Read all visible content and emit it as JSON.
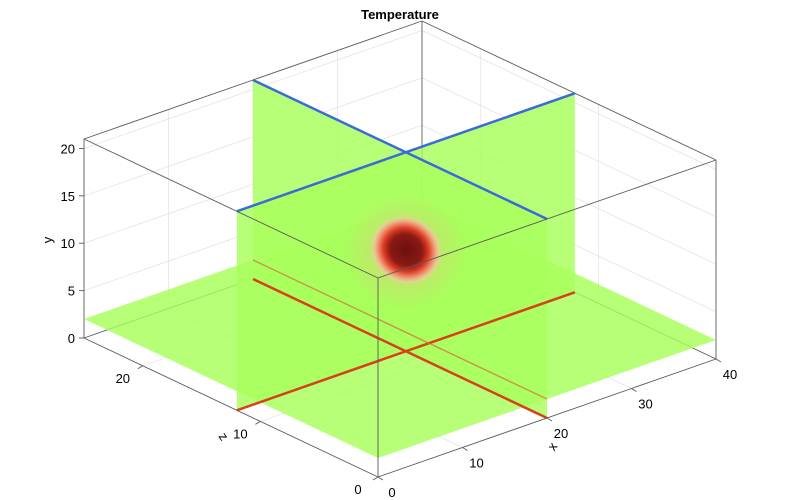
{
  "chart_data": {
    "type": "volume-slices",
    "title": "Temperature",
    "xlabel": "x",
    "ylabel": "y",
    "zlabel": "z",
    "xlim": [
      0,
      40
    ],
    "ylim": [
      0,
      20
    ],
    "zlim": [
      0,
      25
    ],
    "x_ticks": [
      "0",
      "10",
      "20",
      "30",
      "40"
    ],
    "y_ticks": [
      "0",
      "5",
      "10",
      "15",
      "20"
    ],
    "z_ticks": [
      "0",
      "10",
      "20"
    ],
    "slices": [
      {
        "axis": "x",
        "value": 20
      },
      {
        "axis": "z",
        "value": 12
      },
      {
        "axis": "y",
        "value": 2
      }
    ],
    "grid": true,
    "colors": {
      "background_field": "#a8ff5a",
      "hot_core": "#7a1010",
      "hot_ring": "#e8402a",
      "halo": "#f4a07a",
      "top_edge": "#3a6bd8",
      "bottom_edge": "#d8401a"
    }
  }
}
